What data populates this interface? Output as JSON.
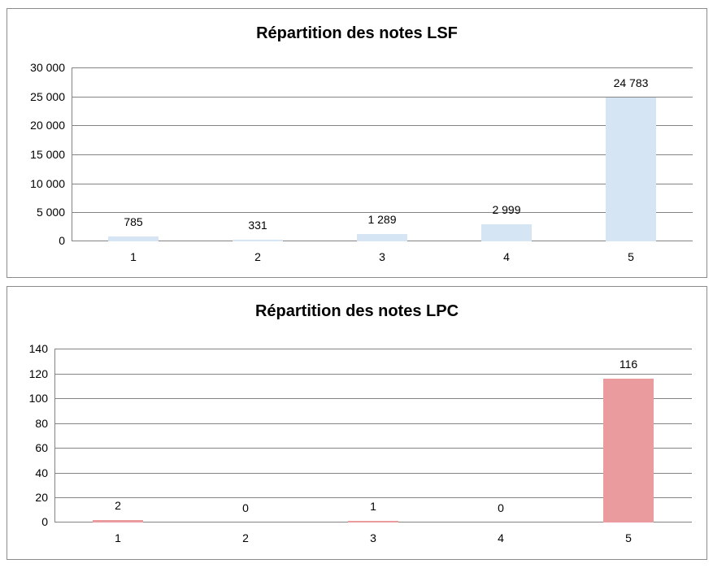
{
  "chart_data": [
    {
      "type": "bar",
      "title": "Répartition des notes LSF",
      "categories": [
        "1",
        "2",
        "3",
        "4",
        "5"
      ],
      "values": [
        785,
        331,
        1289,
        2999,
        24783
      ],
      "value_labels": [
        "785",
        "331",
        "1 289",
        "2 999",
        "24 783"
      ],
      "xlabel": "",
      "ylabel": "",
      "ylim": [
        0,
        30000
      ],
      "ytick_interval": 5000,
      "ytick_labels": [
        "0",
        "5 000",
        "10 000",
        "15 000",
        "20 000",
        "25 000",
        "30 000"
      ],
      "grid": true,
      "legend": "none",
      "bar_color": "#d6e5f4",
      "gridline_color": "#848484",
      "text_color": "#000000"
    },
    {
      "type": "bar",
      "title": "Répartition des notes LPC",
      "categories": [
        "1",
        "2",
        "3",
        "4",
        "5"
      ],
      "values": [
        2,
        0,
        1,
        0,
        116
      ],
      "value_labels": [
        "2",
        "0",
        "1",
        "0",
        "116"
      ],
      "xlabel": "",
      "ylabel": "",
      "ylim": [
        0,
        140
      ],
      "ytick_interval": 20,
      "ytick_labels": [
        "0",
        "20",
        "40",
        "60",
        "80",
        "100",
        "120",
        "140"
      ],
      "grid": true,
      "legend": "none",
      "bar_color": "#ea9b9e",
      "gridline_color": "#848484",
      "text_color": "#000000"
    }
  ]
}
